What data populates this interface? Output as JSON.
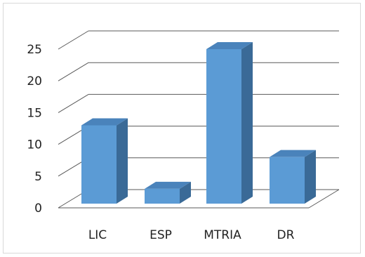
{
  "chart_data": {
    "type": "bar",
    "style": "3d-column",
    "categories": [
      "LIC",
      "ESP",
      "MTRIA",
      "DR"
    ],
    "values": [
      13,
      3,
      25,
      8
    ],
    "title": "",
    "xlabel": "",
    "ylabel": "",
    "ylim": [
      0,
      25
    ],
    "yticks": [
      0,
      5,
      10,
      15,
      20,
      25
    ],
    "grid": true,
    "legend": "none",
    "colors": {
      "bar_front": "#5b9bd5",
      "bar_side": "#3a6a97",
      "bar_top": "#4a83bb",
      "gridline": "#595959",
      "text": "#222222"
    }
  }
}
